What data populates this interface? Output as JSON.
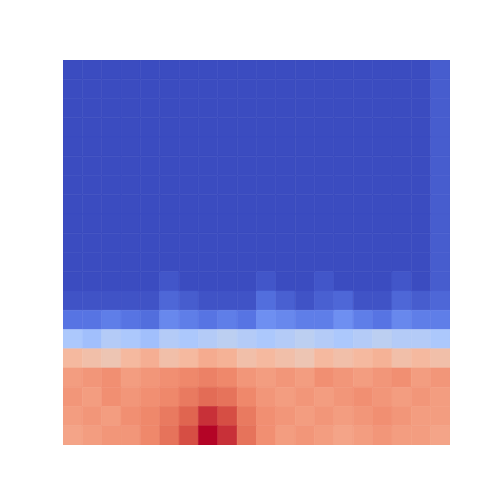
{
  "chart_data": {
    "type": "heatmap",
    "tick_labels": false,
    "zlim": [
      0,
      1
    ],
    "cells": [
      [
        0,
        0,
        0,
        0,
        0,
        0,
        0,
        0,
        0,
        0,
        0,
        0,
        0,
        0,
        0,
        0,
        0,
        0,
        0,
        0.05
      ],
      [
        0,
        0,
        0,
        0,
        0,
        0,
        0,
        0,
        0,
        0,
        0,
        0,
        0,
        0,
        0,
        0,
        0,
        0,
        0,
        0.05
      ],
      [
        0,
        0,
        0,
        0,
        0,
        0,
        0,
        0,
        0,
        0,
        0,
        0,
        0,
        0,
        0,
        0,
        0,
        0,
        0,
        0.05
      ],
      [
        0,
        0,
        0,
        0,
        0,
        0,
        0,
        0,
        0,
        0,
        0,
        0,
        0,
        0,
        0,
        0,
        0,
        0,
        0,
        0.05
      ],
      [
        0,
        0,
        0,
        0,
        0,
        0,
        0,
        0,
        0,
        0,
        0,
        0,
        0,
        0,
        0,
        0,
        0,
        0,
        0,
        0.05
      ],
      [
        0,
        0,
        0,
        0,
        0,
        0,
        0,
        0,
        0,
        0,
        0,
        0,
        0,
        0,
        0,
        0,
        0,
        0,
        0,
        0.05
      ],
      [
        0,
        0,
        0,
        0,
        0,
        0,
        0,
        0,
        0,
        0,
        0,
        0,
        0,
        0,
        0,
        0,
        0,
        0,
        0,
        0.05
      ],
      [
        0,
        0,
        0,
        0,
        0,
        0,
        0,
        0,
        0,
        0,
        0,
        0,
        0,
        0,
        0,
        0,
        0,
        0,
        0,
        0.05
      ],
      [
        0,
        0,
        0,
        0,
        0,
        0,
        0,
        0,
        0,
        0,
        0,
        0,
        0,
        0,
        0,
        0,
        0,
        0,
        0,
        0.05
      ],
      [
        0,
        0,
        0,
        0,
        0,
        0,
        0,
        0,
        0,
        0,
        0,
        0,
        0,
        0,
        0,
        0,
        0,
        0,
        0,
        0.05
      ],
      [
        0,
        0,
        0,
        0,
        0,
        0,
        0,
        0,
        0,
        0,
        0,
        0,
        0,
        0,
        0,
        0,
        0,
        0,
        0,
        0.05
      ],
      [
        0,
        0,
        0,
        0,
        0,
        0.03,
        0,
        0,
        0,
        0,
        0.03,
        0,
        0,
        0.03,
        0,
        0,
        0,
        0.03,
        0,
        0.05
      ],
      [
        0.02,
        0.02,
        0.02,
        0.02,
        0.02,
        0.08,
        0.05,
        0.02,
        0.02,
        0.02,
        0.1,
        0.06,
        0.02,
        0.06,
        0.08,
        0.02,
        0.02,
        0.08,
        0.05,
        0.08
      ],
      [
        0.12,
        0.12,
        0.15,
        0.12,
        0.1,
        0.18,
        0.15,
        0.12,
        0.15,
        0.12,
        0.2,
        0.18,
        0.15,
        0.15,
        0.2,
        0.15,
        0.12,
        0.18,
        0.15,
        0.15
      ],
      [
        0.38,
        0.35,
        0.4,
        0.38,
        0.35,
        0.4,
        0.38,
        0.4,
        0.42,
        0.4,
        0.38,
        0.4,
        0.42,
        0.4,
        0.38,
        0.4,
        0.42,
        0.4,
        0.4,
        0.38
      ],
      [
        0.62,
        0.6,
        0.58,
        0.62,
        0.65,
        0.6,
        0.62,
        0.66,
        0.64,
        0.6,
        0.62,
        0.6,
        0.58,
        0.62,
        0.6,
        0.62,
        0.64,
        0.6,
        0.62,
        0.6
      ],
      [
        0.7,
        0.72,
        0.74,
        0.7,
        0.72,
        0.74,
        0.76,
        0.78,
        0.76,
        0.72,
        0.7,
        0.72,
        0.7,
        0.74,
        0.72,
        0.7,
        0.72,
        0.74,
        0.7,
        0.72
      ],
      [
        0.72,
        0.7,
        0.74,
        0.72,
        0.74,
        0.76,
        0.8,
        0.84,
        0.82,
        0.76,
        0.72,
        0.7,
        0.72,
        0.7,
        0.72,
        0.74,
        0.72,
        0.7,
        0.72,
        0.7
      ],
      [
        0.7,
        0.72,
        0.7,
        0.74,
        0.76,
        0.8,
        0.86,
        0.94,
        0.9,
        0.8,
        0.74,
        0.72,
        0.7,
        0.72,
        0.7,
        0.72,
        0.74,
        0.72,
        0.7,
        0.7
      ],
      [
        0.68,
        0.7,
        0.72,
        0.72,
        0.76,
        0.82,
        0.9,
        1.0,
        0.94,
        0.82,
        0.74,
        0.7,
        0.72,
        0.7,
        0.68,
        0.7,
        0.72,
        0.7,
        0.7,
        0.68
      ]
    ]
  }
}
